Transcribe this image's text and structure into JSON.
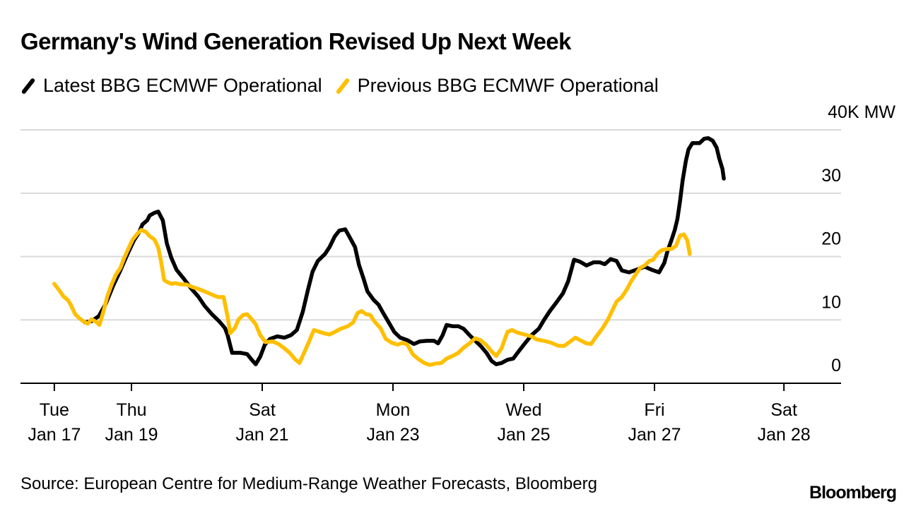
{
  "chart_data": {
    "type": "line",
    "title": "Germany's Wind Generation Revised Up Next Week",
    "xlabel": "",
    "ylabel": "",
    "y_unit_label": "40K MW",
    "ylim": [
      0,
      40
    ],
    "yticks": [
      {
        "value": 40,
        "label": "40K MW"
      },
      {
        "value": 30,
        "label": "30"
      },
      {
        "value": 20,
        "label": "20"
      },
      {
        "value": 10,
        "label": "10"
      },
      {
        "value": 0,
        "label": "0"
      }
    ],
    "grid": true,
    "x_units": "days since Jan 17 00:00",
    "xlim": [
      -0.3,
      12.8
    ],
    "xticks": [
      {
        "day": 0.82,
        "line1": "Tue",
        "line2": "Jan 17"
      },
      {
        "day": 2.0,
        "line1": "Thu",
        "line2": "Jan 19"
      },
      {
        "day": 4.0,
        "line1": "Sat",
        "line2": "Jan 21"
      },
      {
        "day": 6.0,
        "line1": "Mon",
        "line2": "Jan 23"
      },
      {
        "day": 8.0,
        "line1": "Wed",
        "line2": "Jan 25"
      },
      {
        "day": 10.0,
        "line1": "Fri",
        "line2": "Jan 27"
      },
      {
        "day": 11.98,
        "line1": "Sat",
        "line2": "Jan 28"
      }
    ],
    "legend_position": "top-left",
    "series": [
      {
        "name": "Latest BBG ECMWF Operational",
        "color": "#000000",
        "points": [
          [
            1.29,
            9.6
          ],
          [
            1.39,
            9.8
          ],
          [
            1.5,
            10.6
          ],
          [
            1.61,
            12.6
          ],
          [
            1.72,
            15.4
          ],
          [
            1.83,
            17.8
          ],
          [
            1.94,
            20.4
          ],
          [
            2.04,
            22.6
          ],
          [
            2.11,
            23.7
          ],
          [
            2.17,
            25.1
          ],
          [
            2.24,
            25.7
          ],
          [
            2.28,
            26.5
          ],
          [
            2.35,
            26.9
          ],
          [
            2.41,
            27.1
          ],
          [
            2.48,
            25.7
          ],
          [
            2.54,
            22.1
          ],
          [
            2.61,
            19.8
          ],
          [
            2.69,
            17.9
          ],
          [
            2.8,
            16.5
          ],
          [
            2.91,
            15.0
          ],
          [
            3.02,
            13.7
          ],
          [
            3.12,
            12.2
          ],
          [
            3.23,
            10.9
          ],
          [
            3.34,
            9.8
          ],
          [
            3.43,
            8.7
          ],
          [
            3.47,
            7.6
          ],
          [
            3.54,
            4.8
          ],
          [
            3.67,
            4.8
          ],
          [
            3.77,
            4.6
          ],
          [
            3.84,
            3.7
          ],
          [
            3.9,
            3.0
          ],
          [
            3.97,
            4.2
          ],
          [
            4.04,
            6.1
          ],
          [
            4.12,
            7.0
          ],
          [
            4.23,
            7.4
          ],
          [
            4.34,
            7.2
          ],
          [
            4.44,
            7.6
          ],
          [
            4.53,
            8.4
          ],
          [
            4.62,
            11.3
          ],
          [
            4.7,
            14.8
          ],
          [
            4.77,
            17.6
          ],
          [
            4.85,
            19.3
          ],
          [
            4.96,
            20.4
          ],
          [
            5.03,
            21.5
          ],
          [
            5.11,
            23.2
          ],
          [
            5.18,
            24.1
          ],
          [
            5.27,
            24.3
          ],
          [
            5.33,
            23.2
          ],
          [
            5.42,
            21.5
          ],
          [
            5.48,
            18.7
          ],
          [
            5.55,
            16.5
          ],
          [
            5.61,
            14.5
          ],
          [
            5.7,
            13.2
          ],
          [
            5.78,
            12.4
          ],
          [
            5.85,
            11.1
          ],
          [
            5.94,
            9.5
          ],
          [
            6.02,
            8.1
          ],
          [
            6.11,
            7.2
          ],
          [
            6.22,
            6.8
          ],
          [
            6.32,
            6.2
          ],
          [
            6.41,
            6.6
          ],
          [
            6.52,
            6.7
          ],
          [
            6.63,
            6.7
          ],
          [
            6.69,
            6.3
          ],
          [
            6.76,
            7.6
          ],
          [
            6.82,
            9.2
          ],
          [
            6.91,
            9.0
          ],
          [
            7.0,
            9.0
          ],
          [
            7.08,
            8.6
          ],
          [
            7.17,
            7.6
          ],
          [
            7.26,
            6.7
          ],
          [
            7.34,
            5.9
          ],
          [
            7.43,
            4.8
          ],
          [
            7.51,
            3.5
          ],
          [
            7.58,
            3.0
          ],
          [
            7.66,
            3.2
          ],
          [
            7.75,
            3.7
          ],
          [
            7.84,
            3.9
          ],
          [
            7.92,
            5.0
          ],
          [
            8.01,
            6.2
          ],
          [
            8.12,
            7.6
          ],
          [
            8.23,
            8.6
          ],
          [
            8.31,
            10.0
          ],
          [
            8.4,
            11.4
          ],
          [
            8.51,
            12.9
          ],
          [
            8.6,
            14.2
          ],
          [
            8.68,
            16.1
          ],
          [
            8.77,
            19.5
          ],
          [
            8.86,
            19.2
          ],
          [
            8.96,
            18.6
          ],
          [
            9.07,
            19.1
          ],
          [
            9.16,
            19.1
          ],
          [
            9.24,
            18.8
          ],
          [
            9.33,
            19.6
          ],
          [
            9.42,
            19.3
          ],
          [
            9.5,
            17.8
          ],
          [
            9.61,
            17.5
          ],
          [
            9.72,
            17.9
          ],
          [
            9.85,
            18.4
          ],
          [
            9.96,
            17.9
          ],
          [
            10.07,
            17.5
          ],
          [
            10.15,
            19.0
          ],
          [
            10.2,
            20.9
          ],
          [
            10.26,
            22.6
          ],
          [
            10.31,
            24.2
          ],
          [
            10.35,
            25.9
          ],
          [
            10.39,
            28.7
          ],
          [
            10.43,
            32.0
          ],
          [
            10.48,
            35.1
          ],
          [
            10.52,
            36.9
          ],
          [
            10.58,
            37.9
          ],
          [
            10.69,
            37.9
          ],
          [
            10.76,
            38.6
          ],
          [
            10.82,
            38.7
          ],
          [
            10.89,
            38.3
          ],
          [
            10.95,
            37.2
          ],
          [
            10.99,
            35.5
          ],
          [
            11.04,
            33.8
          ],
          [
            11.06,
            32.3
          ]
        ]
      },
      {
        "name": "Previous BBG ECMWF Operational",
        "color": "#FFBF00",
        "points": [
          [
            0.82,
            15.7
          ],
          [
            0.9,
            14.6
          ],
          [
            0.96,
            13.7
          ],
          [
            1.03,
            13.1
          ],
          [
            1.07,
            12.4
          ],
          [
            1.14,
            10.9
          ],
          [
            1.2,
            10.3
          ],
          [
            1.26,
            9.8
          ],
          [
            1.33,
            9.4
          ],
          [
            1.39,
            10.1
          ],
          [
            1.46,
            9.7
          ],
          [
            1.51,
            9.2
          ],
          [
            1.57,
            11.3
          ],
          [
            1.63,
            13.7
          ],
          [
            1.7,
            15.7
          ],
          [
            1.76,
            17.1
          ],
          [
            1.83,
            18.2
          ],
          [
            1.89,
            19.8
          ],
          [
            1.96,
            21.4
          ],
          [
            2.02,
            22.7
          ],
          [
            2.09,
            23.6
          ],
          [
            2.15,
            24.2
          ],
          [
            2.22,
            23.9
          ],
          [
            2.28,
            23.2
          ],
          [
            2.35,
            22.7
          ],
          [
            2.41,
            21.4
          ],
          [
            2.45,
            19.4
          ],
          [
            2.5,
            16.3
          ],
          [
            2.54,
            16.0
          ],
          [
            2.61,
            15.7
          ],
          [
            2.67,
            15.8
          ],
          [
            2.76,
            15.6
          ],
          [
            2.84,
            15.6
          ],
          [
            2.93,
            15.2
          ],
          [
            3.02,
            14.9
          ],
          [
            3.12,
            14.5
          ],
          [
            3.23,
            14.0
          ],
          [
            3.32,
            13.6
          ],
          [
            3.41,
            13.6
          ],
          [
            3.47,
            10.5
          ],
          [
            3.51,
            7.9
          ],
          [
            3.58,
            8.7
          ],
          [
            3.64,
            10.1
          ],
          [
            3.71,
            10.8
          ],
          [
            3.77,
            10.9
          ],
          [
            3.84,
            10.1
          ],
          [
            3.9,
            9.3
          ],
          [
            3.97,
            7.6
          ],
          [
            4.05,
            6.5
          ],
          [
            4.16,
            6.6
          ],
          [
            4.25,
            6.2
          ],
          [
            4.34,
            5.5
          ],
          [
            4.42,
            4.8
          ],
          [
            4.51,
            3.7
          ],
          [
            4.57,
            3.2
          ],
          [
            4.64,
            4.8
          ],
          [
            4.7,
            6.2
          ],
          [
            4.79,
            8.4
          ],
          [
            4.85,
            8.2
          ],
          [
            4.94,
            7.9
          ],
          [
            5.03,
            7.7
          ],
          [
            5.11,
            8.1
          ],
          [
            5.2,
            8.6
          ],
          [
            5.31,
            9.0
          ],
          [
            5.39,
            9.6
          ],
          [
            5.46,
            11.1
          ],
          [
            5.52,
            11.4
          ],
          [
            5.59,
            10.9
          ],
          [
            5.65,
            10.8
          ],
          [
            5.72,
            9.7
          ],
          [
            5.81,
            8.7
          ],
          [
            5.89,
            7.0
          ],
          [
            5.98,
            6.4
          ],
          [
            6.07,
            6.1
          ],
          [
            6.15,
            6.4
          ],
          [
            6.22,
            6.1
          ],
          [
            6.3,
            4.6
          ],
          [
            6.39,
            3.8
          ],
          [
            6.48,
            3.2
          ],
          [
            6.56,
            2.9
          ],
          [
            6.65,
            3.1
          ],
          [
            6.74,
            3.2
          ],
          [
            6.82,
            3.9
          ],
          [
            6.91,
            4.3
          ],
          [
            7.0,
            4.8
          ],
          [
            7.08,
            5.6
          ],
          [
            7.17,
            6.3
          ],
          [
            7.26,
            7.1
          ],
          [
            7.34,
            6.8
          ],
          [
            7.43,
            6.0
          ],
          [
            7.51,
            5.0
          ],
          [
            7.58,
            4.3
          ],
          [
            7.66,
            5.5
          ],
          [
            7.75,
            8.1
          ],
          [
            7.82,
            8.4
          ],
          [
            7.9,
            8.0
          ],
          [
            8.01,
            7.7
          ],
          [
            8.12,
            7.4
          ],
          [
            8.2,
            6.9
          ],
          [
            8.31,
            6.7
          ],
          [
            8.42,
            6.4
          ],
          [
            8.53,
            5.9
          ],
          [
            8.62,
            5.9
          ],
          [
            8.7,
            6.5
          ],
          [
            8.79,
            7.2
          ],
          [
            8.88,
            6.7
          ],
          [
            8.96,
            6.3
          ],
          [
            9.03,
            6.2
          ],
          [
            9.11,
            7.4
          ],
          [
            9.2,
            8.6
          ],
          [
            9.29,
            10.1
          ],
          [
            9.35,
            11.4
          ],
          [
            9.42,
            12.9
          ],
          [
            9.5,
            13.6
          ],
          [
            9.57,
            14.7
          ],
          [
            9.65,
            16.2
          ],
          [
            9.72,
            17.3
          ],
          [
            9.78,
            18.2
          ],
          [
            9.85,
            18.6
          ],
          [
            9.92,
            19.3
          ],
          [
            9.98,
            19.5
          ],
          [
            10.04,
            20.4
          ],
          [
            10.11,
            21.0
          ],
          [
            10.2,
            21.2
          ],
          [
            10.26,
            21.2
          ],
          [
            10.33,
            21.7
          ],
          [
            10.39,
            23.3
          ],
          [
            10.45,
            23.5
          ],
          [
            10.5,
            22.6
          ],
          [
            10.54,
            20.4
          ]
        ]
      }
    ]
  },
  "footer": {
    "source": "Source: European Centre for Medium-Range Weather Forecasts, Bloomberg",
    "brand": "Bloomberg"
  }
}
